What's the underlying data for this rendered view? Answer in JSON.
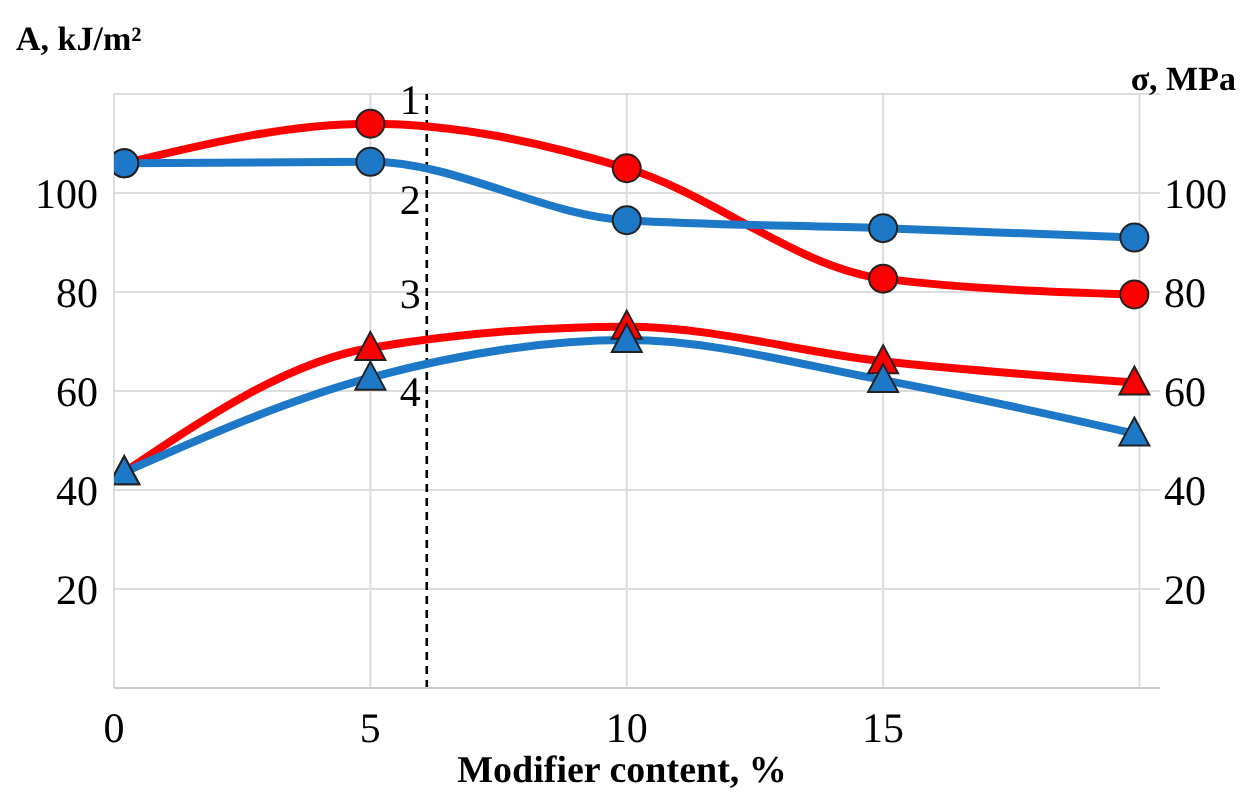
{
  "chart_data": {
    "type": "line",
    "xlabel": "Modifier content, %",
    "ylabel": "A, kJ/m²",
    "y2label": "σ, MPa",
    "x": [
      0.2,
      5,
      10,
      15,
      19.9
    ],
    "series": [
      {
        "name": "1",
        "color": "#ff0000",
        "marker": "circle",
        "axis": "y2",
        "values": [
          106,
          114,
          105,
          82.7,
          79.5
        ]
      },
      {
        "name": "2",
        "color": "#1e78c8",
        "marker": "circle",
        "axis": "y2",
        "values": [
          106,
          106.3,
          94.5,
          92.9,
          91
        ]
      },
      {
        "name": "3",
        "color": "#ff0000",
        "marker": "triangle",
        "values": [
          43.6,
          68.7,
          73,
          66,
          61.7
        ]
      },
      {
        "name": "4",
        "color": "#1e78c8",
        "marker": "triangle",
        "values": [
          43.6,
          62.7,
          70.3,
          62.2,
          51.4
        ]
      }
    ],
    "xlim": [
      0,
      20.4
    ],
    "xticks": [
      0,
      5,
      10,
      15,
      {
        "value": 20,
        "label": null
      }
    ],
    "ylim": [
      0,
      120
    ],
    "yticks": [
      {
        "value": 0,
        "label": null
      },
      20,
      40,
      60,
      80,
      100,
      {
        "value": 120,
        "label": null
      }
    ],
    "y2lim": [
      0,
      120
    ],
    "y2ticks": [
      {
        "value": 0,
        "label": null
      },
      20,
      40,
      60,
      80,
      100,
      {
        "value": 120,
        "label": null
      }
    ],
    "grid": true,
    "line_style": "solid",
    "ref_lines": [
      {
        "axis": "x",
        "value": 6.1,
        "color": "#000000",
        "line_style": "dashed"
      }
    ]
  }
}
